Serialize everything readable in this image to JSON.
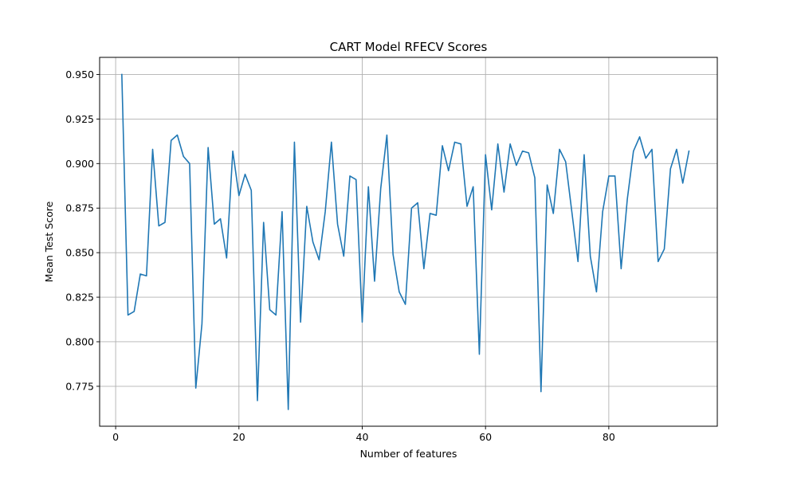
{
  "chart_data": {
    "type": "line",
    "title": "CART Model RFECV Scores",
    "xlabel": "Number of features",
    "ylabel": "Mean Test Score",
    "xlim": [
      -2.6,
      97.6
    ],
    "ylim": [
      0.7526,
      0.9596
    ],
    "xticks": [
      0,
      20,
      40,
      60,
      80
    ],
    "yticks": [
      0.775,
      0.8,
      0.825,
      0.85,
      0.875,
      0.9,
      0.925,
      0.95
    ],
    "ytick_labels": [
      "0.775",
      "0.800",
      "0.825",
      "0.850",
      "0.875",
      "0.900",
      "0.925",
      "0.950"
    ],
    "grid": true,
    "line_color": "#1f77b4",
    "series": [
      {
        "x": [
          1,
          2,
          3,
          4,
          5,
          6,
          7,
          8,
          9,
          10,
          11,
          12,
          13,
          14,
          15,
          16,
          17,
          18,
          19,
          20,
          21,
          22,
          23,
          24,
          25,
          26,
          27,
          28,
          29,
          30,
          31,
          32,
          33,
          34,
          35,
          36,
          37,
          38,
          39,
          40,
          41,
          42,
          43,
          44,
          45,
          46,
          47,
          48,
          49,
          50,
          51,
          52,
          53,
          54,
          55,
          56,
          57,
          58,
          59,
          60,
          61,
          62,
          63,
          64,
          65,
          66,
          67,
          68,
          69,
          70,
          71,
          72,
          73,
          74,
          75,
          76,
          77,
          78,
          79,
          80,
          81,
          82,
          83,
          84,
          85,
          86,
          87,
          88,
          89,
          90,
          91,
          92,
          93
        ],
        "values": [
          0.95,
          0.815,
          0.817,
          0.838,
          0.837,
          0.908,
          0.865,
          0.867,
          0.913,
          0.916,
          0.904,
          0.9,
          0.774,
          0.81,
          0.909,
          0.866,
          0.869,
          0.847,
          0.907,
          0.882,
          0.894,
          0.885,
          0.767,
          0.867,
          0.818,
          0.815,
          0.873,
          0.762,
          0.912,
          0.811,
          0.876,
          0.856,
          0.846,
          0.873,
          0.912,
          0.866,
          0.848,
          0.893,
          0.891,
          0.811,
          0.887,
          0.834,
          0.886,
          0.916,
          0.849,
          0.828,
          0.821,
          0.875,
          0.878,
          0.841,
          0.872,
          0.871,
          0.91,
          0.896,
          0.912,
          0.911,
          0.876,
          0.887,
          0.793,
          0.905,
          0.874,
          0.911,
          0.884,
          0.911,
          0.899,
          0.907,
          0.906,
          0.892,
          0.772,
          0.888,
          0.872,
          0.908,
          0.901,
          0.873,
          0.845,
          0.905,
          0.848,
          0.828,
          0.873,
          0.893,
          0.893,
          0.841,
          0.88,
          0.907,
          0.915,
          0.903,
          0.908,
          0.845,
          0.852,
          0.897,
          0.908,
          0.889,
          0.907
        ]
      }
    ]
  }
}
